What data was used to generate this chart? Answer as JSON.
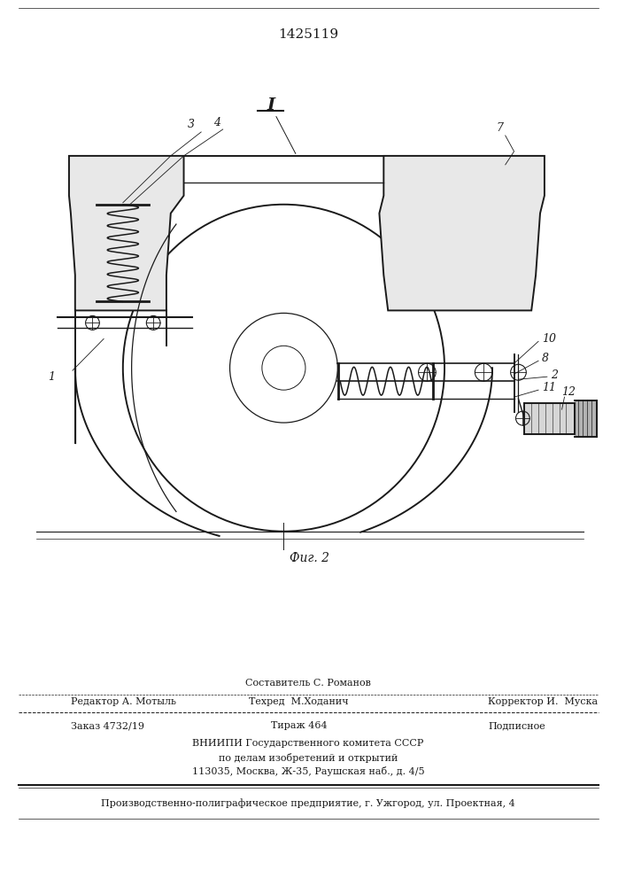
{
  "patent_number": "1425119",
  "fig_label": "Фиг. 2",
  "section_label": "I",
  "bg_color": "#ffffff",
  "line_color": "#1a1a1a",
  "bottom_texts": {
    "sostavitel": "Составитель С. Романов",
    "tehred": "Техред  М.Ходанич",
    "korrektor": "Корректор И.  Муска",
    "redaktor": "Редактор А. Мотыль",
    "zakaz": "Заказ 4732/19",
    "tirazh": "Тираж 464",
    "podpisnoe": "Подписное",
    "vniiipi1": "ВНИИПИ Государственного комитета СССР",
    "vniiipi2": "по делам изобретений и открытий",
    "vniiipi3": "113035, Москва, Ж-35, Раушская наб., д. 4/5",
    "production": "Производственно-полиграфическое предприятие, г. Ужгород, ул. Проектная, 4"
  }
}
